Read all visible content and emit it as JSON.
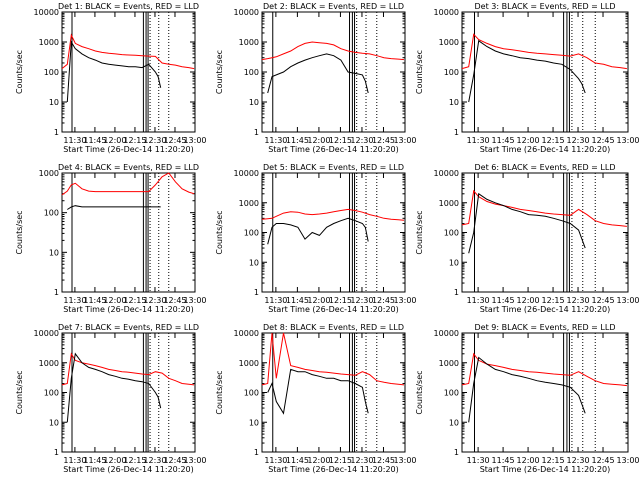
{
  "colors": {
    "events": "#000000",
    "lld": "#ff0000",
    "axes": "#000000",
    "background": "#ffffff"
  },
  "chart_data": [
    {
      "type": "line",
      "title": "Det 1: BLACK = Events, RED = LLD",
      "xlabel": "Start Time (26-Dec-14 11:20:20)",
      "ylabel": "Counts/sec",
      "yscale": "log",
      "ylim": [
        1,
        10000
      ],
      "yticks": [
        "1",
        "10",
        "100",
        "1000",
        "10000"
      ],
      "xlim": [
        "11:20:20",
        "13:00:00"
      ],
      "xticks": [
        "11:30",
        "11:45",
        "12:00",
        "12:15",
        "12:30",
        "12:45",
        "13:00"
      ],
      "events": {
        "x_min": [
          4,
          7,
          10,
          15,
          20,
          25,
          30,
          35,
          40,
          45,
          50,
          55,
          60,
          65,
          70,
          72,
          74
        ],
        "y": [
          10,
          1000,
          600,
          400,
          300,
          250,
          200,
          180,
          170,
          160,
          150,
          150,
          140,
          180,
          100,
          70,
          30
        ]
      },
      "lld": {
        "x_min": [
          0,
          4,
          7,
          10,
          15,
          20,
          25,
          30,
          35,
          40,
          45,
          50,
          55,
          60,
          65,
          70,
          75,
          80,
          85,
          90,
          95,
          99
        ],
        "y": [
          130,
          180,
          1700,
          900,
          700,
          600,
          500,
          450,
          420,
          400,
          380,
          370,
          360,
          350,
          340,
          330,
          200,
          180,
          170,
          150,
          140,
          130
        ]
      },
      "vlines_solid_min": [
        7.5,
        61,
        63,
        64.5
      ],
      "vlines_dotted_min": [
        66,
        72.5,
        80
      ]
    },
    {
      "type": "line",
      "title": "Det 2: BLACK = Events, RED = LLD",
      "xlabel": "Start Time (26-Dec-14 11:20:20)",
      "ylabel": "Counts/sec",
      "yscale": "log",
      "ylim": [
        1,
        10000
      ],
      "yticks": [
        "1",
        "10",
        "100",
        "1000",
        "10000"
      ],
      "xlim": [
        "11:20:20",
        "13:00:00"
      ],
      "xticks": [
        "11:30",
        "11:45",
        "12:00",
        "12:15",
        "12:30",
        "12:45",
        "13:00"
      ],
      "events": {
        "x_min": [
          4,
          7,
          10,
          15,
          20,
          25,
          30,
          35,
          40,
          45,
          50,
          55,
          60,
          65,
          70,
          72,
          74
        ],
        "y": [
          20,
          70,
          80,
          100,
          150,
          200,
          250,
          300,
          350,
          400,
          350,
          250,
          100,
          90,
          80,
          50,
          20
        ]
      },
      "lld": {
        "x_min": [
          0,
          4,
          7,
          10,
          15,
          20,
          25,
          30,
          35,
          40,
          45,
          50,
          55,
          60,
          65,
          70,
          75,
          80,
          85,
          90,
          95,
          99
        ],
        "y": [
          260,
          280,
          300,
          320,
          400,
          500,
          700,
          900,
          1000,
          950,
          900,
          800,
          600,
          500,
          450,
          420,
          400,
          350,
          300,
          280,
          270,
          260
        ]
      },
      "vlines_solid_min": [
        7.5,
        61,
        63,
        64.5
      ],
      "vlines_dotted_min": [
        66,
        72.5,
        80
      ]
    },
    {
      "type": "line",
      "title": "Det 3: BLACK = Events, RED = LLD",
      "xlabel": "Start Time (26-Dec-14 11:20:20)",
      "ylabel": "Counts/sec",
      "yscale": "log",
      "ylim": [
        1,
        10000
      ],
      "yticks": [
        "1",
        "10",
        "100",
        "1000",
        "10000"
      ],
      "xlim": [
        "11:20:20",
        "13:00:00"
      ],
      "xticks": [
        "11:30",
        "11:45",
        "12:00",
        "12:15",
        "12:30",
        "12:45",
        "13:00"
      ],
      "events": {
        "x_min": [
          4,
          7,
          10,
          15,
          20,
          25,
          30,
          35,
          40,
          45,
          50,
          55,
          60,
          65,
          70,
          72,
          74
        ],
        "y": [
          10,
          80,
          1100,
          700,
          500,
          400,
          350,
          300,
          280,
          250,
          230,
          200,
          180,
          120,
          60,
          40,
          20
        ]
      },
      "lld": {
        "x_min": [
          0,
          4,
          7,
          10,
          15,
          20,
          25,
          30,
          35,
          40,
          45,
          50,
          55,
          60,
          65,
          70,
          75,
          80,
          85,
          90,
          95,
          99
        ],
        "y": [
          130,
          150,
          1800,
          1200,
          900,
          700,
          600,
          550,
          500,
          450,
          420,
          400,
          380,
          360,
          340,
          400,
          300,
          200,
          180,
          150,
          140,
          130
        ]
      },
      "vlines_solid_min": [
        7.5,
        61,
        63,
        64.5
      ],
      "vlines_dotted_min": [
        66,
        72.5,
        80
      ]
    },
    {
      "type": "line",
      "title": "Det 4: BLACK = Events, RED = LLD",
      "xlabel": "Start Time (26-Dec-14 11:20:20)",
      "ylabel": "Counts/sec",
      "yscale": "log",
      "ylim": [
        1,
        1000
      ],
      "yticks": [
        "1",
        "10",
        "100",
        "1000"
      ],
      "xlim": [
        "11:20:20",
        "13:00:00"
      ],
      "xticks": [
        "11:30",
        "11:45",
        "12:00",
        "12:15",
        "12:30",
        "12:45",
        "13:00"
      ],
      "events": {
        "x_min": [
          4,
          7,
          10,
          15,
          20,
          25,
          30,
          35,
          40,
          45,
          50,
          55,
          60,
          65,
          70,
          72,
          74
        ],
        "y": [
          120,
          140,
          150,
          140,
          140,
          140,
          140,
          140,
          140,
          140,
          140,
          140,
          140,
          140,
          140,
          140,
          140
        ]
      },
      "lld": {
        "x_min": [
          0,
          4,
          7,
          10,
          15,
          20,
          25,
          30,
          35,
          40,
          45,
          50,
          55,
          60,
          65,
          70,
          75,
          80,
          85,
          90,
          95,
          99
        ],
        "y": [
          280,
          350,
          500,
          550,
          400,
          350,
          340,
          340,
          340,
          340,
          340,
          340,
          340,
          340,
          340,
          500,
          800,
          1000,
          600,
          400,
          330,
          300
        ]
      },
      "vlines_solid_min": [
        7.5,
        61,
        63,
        64.5
      ],
      "vlines_dotted_min": [
        66,
        72.5,
        80
      ]
    },
    {
      "type": "line",
      "title": "Det 5: BLACK = Events, RED = LLD",
      "xlabel": "Start Time (26-Dec-14 11:20:20)",
      "ylabel": "Counts/sec",
      "yscale": "log",
      "ylim": [
        1,
        10000
      ],
      "yticks": [
        "1",
        "10",
        "100",
        "1000",
        "10000"
      ],
      "xlim": [
        "11:20:20",
        "13:00:00"
      ],
      "xticks": [
        "11:30",
        "11:45",
        "12:00",
        "12:15",
        "12:30",
        "12:45",
        "13:00"
      ],
      "events": {
        "x_min": [
          4,
          7,
          10,
          15,
          20,
          25,
          30,
          35,
          40,
          45,
          50,
          55,
          60,
          65,
          70,
          72,
          74
        ],
        "y": [
          40,
          150,
          200,
          200,
          180,
          150,
          60,
          100,
          80,
          150,
          200,
          250,
          300,
          250,
          200,
          150,
          50
        ]
      },
      "lld": {
        "x_min": [
          0,
          4,
          7,
          10,
          15,
          20,
          25,
          30,
          35,
          40,
          45,
          50,
          55,
          60,
          65,
          70,
          75,
          80,
          85,
          90,
          95,
          99
        ],
        "y": [
          280,
          290,
          300,
          350,
          450,
          500,
          480,
          420,
          400,
          420,
          450,
          500,
          550,
          600,
          550,
          480,
          400,
          350,
          300,
          280,
          270,
          260
        ]
      },
      "vlines_solid_min": [
        7.5,
        61,
        63,
        64.5
      ],
      "vlines_dotted_min": [
        66,
        72.5,
        80
      ]
    },
    {
      "type": "line",
      "title": "Det 6: BLACK = Events, RED = LLD",
      "xlabel": "Start Time (26-Dec-14 11:20:20)",
      "ylabel": "Counts/sec",
      "yscale": "log",
      "ylim": [
        1,
        10000
      ],
      "yticks": [
        "1",
        "10",
        "100",
        "1000",
        "10000"
      ],
      "xlim": [
        "11:20:20",
        "13:00:00"
      ],
      "xticks": [
        "11:30",
        "11:45",
        "12:00",
        "12:15",
        "12:30",
        "12:45",
        "13:00"
      ],
      "events": {
        "x_min": [
          4,
          7,
          10,
          15,
          20,
          25,
          30,
          35,
          40,
          45,
          50,
          55,
          60,
          65,
          70,
          72,
          74
        ],
        "y": [
          20,
          100,
          2000,
          1300,
          1000,
          800,
          600,
          500,
          400,
          380,
          350,
          300,
          250,
          200,
          120,
          60,
          30
        ]
      },
      "lld": {
        "x_min": [
          0,
          4,
          7,
          10,
          15,
          20,
          25,
          30,
          35,
          40,
          45,
          50,
          55,
          60,
          65,
          70,
          75,
          80,
          85,
          90,
          95,
          99
        ],
        "y": [
          180,
          200,
          2500,
          1600,
          1100,
          900,
          800,
          700,
          600,
          550,
          500,
          450,
          420,
          400,
          380,
          600,
          400,
          250,
          200,
          180,
          170,
          160
        ]
      },
      "vlines_solid_min": [
        7.5,
        61,
        63,
        64.5
      ],
      "vlines_dotted_min": [
        66,
        72.5,
        80
      ]
    },
    {
      "type": "line",
      "title": "Det 7: BLACK = Events, RED = LLD",
      "xlabel": "Start Time (26-Dec-14 11:20:20)",
      "ylabel": "Counts/sec",
      "yscale": "log",
      "ylim": [
        1,
        10000
      ],
      "yticks": [
        "1",
        "10",
        "100",
        "1000",
        "10000"
      ],
      "xlim": [
        "11:20:20",
        "13:00:00"
      ],
      "xticks": [
        "11:30",
        "11:45",
        "12:00",
        "12:15",
        "12:30",
        "12:45",
        "13:00"
      ],
      "events": {
        "x_min": [
          4,
          7,
          10,
          15,
          20,
          25,
          30,
          35,
          40,
          45,
          50,
          55,
          60,
          65,
          70,
          72,
          74
        ],
        "y": [
          10,
          300,
          2000,
          1000,
          700,
          600,
          500,
          400,
          350,
          300,
          280,
          250,
          230,
          200,
          100,
          70,
          30
        ]
      },
      "lld": {
        "x_min": [
          0,
          4,
          7,
          10,
          15,
          20,
          25,
          30,
          35,
          40,
          45,
          50,
          55,
          60,
          65,
          70,
          75,
          80,
          85,
          90,
          95,
          99
        ],
        "y": [
          180,
          200,
          2000,
          1200,
          1000,
          900,
          800,
          700,
          600,
          550,
          500,
          480,
          450,
          420,
          400,
          500,
          450,
          300,
          250,
          200,
          190,
          180
        ]
      },
      "vlines_solid_min": [
        7.5,
        61,
        63,
        64.5
      ],
      "vlines_dotted_min": [
        66,
        72.5,
        80
      ]
    },
    {
      "type": "line",
      "title": "Det 8: BLACK = Events, RED = LLD",
      "xlabel": "Start Time (26-Dec-14 11:20:20)",
      "ylabel": "Counts/sec",
      "yscale": "log",
      "ylim": [
        1,
        10000
      ],
      "yticks": [
        "1",
        "10",
        "100",
        "1000",
        "10000"
      ],
      "xlim": [
        "11:20:20",
        "13:00:00"
      ],
      "xticks": [
        "11:30",
        "11:45",
        "12:00",
        "12:15",
        "12:30",
        "12:45",
        "13:00"
      ],
      "events": {
        "x_min": [
          4,
          7,
          10,
          15,
          20,
          25,
          30,
          35,
          40,
          45,
          50,
          55,
          60,
          65,
          70,
          72,
          74
        ],
        "y": [
          100,
          200,
          50,
          20,
          600,
          500,
          500,
          400,
          350,
          300,
          300,
          250,
          250,
          200,
          150,
          50,
          20
        ]
      },
      "lld": {
        "x_min": [
          0,
          4,
          7,
          10,
          15,
          20,
          25,
          30,
          35,
          40,
          45,
          50,
          55,
          60,
          65,
          70,
          75,
          80,
          85,
          90,
          95,
          99
        ],
        "y": [
          180,
          200,
          10000,
          300,
          10000,
          800,
          700,
          600,
          550,
          500,
          480,
          450,
          420,
          400,
          380,
          500,
          400,
          250,
          220,
          200,
          190,
          180
        ]
      },
      "vlines_solid_min": [
        7.5,
        61,
        63,
        64.5
      ],
      "vlines_dotted_min": [
        66,
        72.5,
        80
      ]
    },
    {
      "type": "line",
      "title": "Det 9: BLACK = Events, RED = LLD",
      "xlabel": "Start Time (26-Dec-14 11:20:20)",
      "ylabel": "Counts/sec",
      "yscale": "log",
      "ylim": [
        1,
        10000
      ],
      "yticks": [
        "1",
        "10",
        "100",
        "1000",
        "10000"
      ],
      "xlim": [
        "11:20:20",
        "13:00:00"
      ],
      "xticks": [
        "11:30",
        "11:45",
        "12:00",
        "12:15",
        "12:30",
        "12:45",
        "13:00"
      ],
      "events": {
        "x_min": [
          4,
          7,
          10,
          15,
          20,
          25,
          30,
          35,
          40,
          45,
          50,
          55,
          60,
          65,
          70,
          72,
          74
        ],
        "y": [
          10,
          200,
          1500,
          900,
          600,
          500,
          400,
          350,
          300,
          250,
          220,
          200,
          180,
          150,
          80,
          40,
          20
        ]
      },
      "lld": {
        "x_min": [
          0,
          4,
          7,
          10,
          15,
          20,
          25,
          30,
          35,
          40,
          45,
          50,
          55,
          60,
          65,
          70,
          75,
          80,
          85,
          90,
          95,
          99
        ],
        "y": [
          180,
          200,
          2000,
          1200,
          900,
          800,
          700,
          600,
          550,
          500,
          480,
          450,
          420,
          400,
          380,
          500,
          350,
          250,
          200,
          190,
          180,
          170
        ]
      },
      "vlines_solid_min": [
        7.5,
        61,
        63,
        64.5
      ],
      "vlines_dotted_min": [
        66,
        72.5,
        80
      ]
    }
  ]
}
